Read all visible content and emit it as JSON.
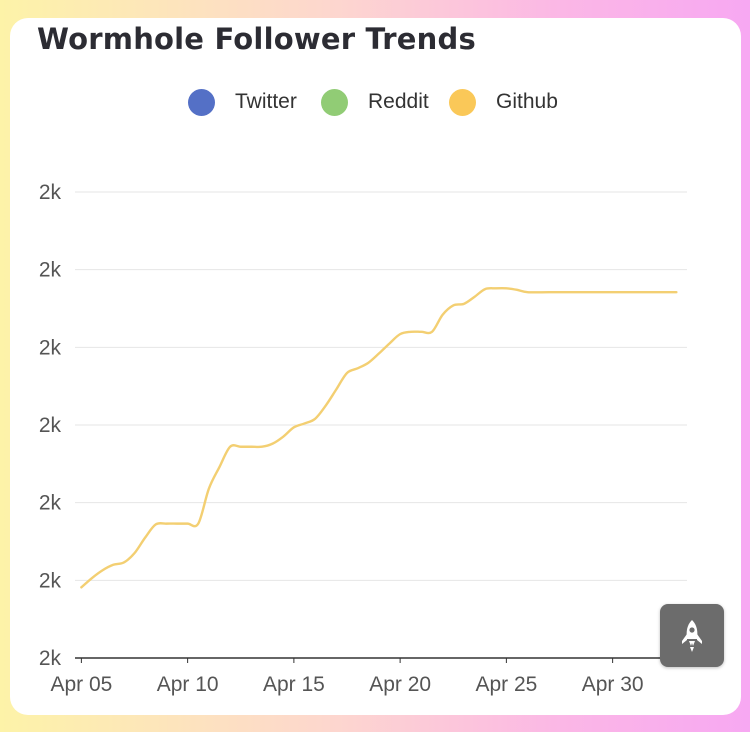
{
  "chart_data": {
    "type": "line",
    "title": "Wormhole Follower Trends",
    "xlabel": "",
    "ylabel": "",
    "legend_position": "top-center",
    "grid": true,
    "legend": [
      {
        "name": "Twitter",
        "color": "#5470c6"
      },
      {
        "name": "Reddit",
        "color": "#91cc75"
      },
      {
        "name": "Github",
        "color": "#fac858"
      }
    ],
    "x_ticks": [
      {
        "label": "Apr 05",
        "day": 0
      },
      {
        "label": "Apr 10",
        "day": 5
      },
      {
        "label": "Apr 15",
        "day": 10
      },
      {
        "label": "Apr 20",
        "day": 15
      },
      {
        "label": "Apr 25",
        "day": 20
      },
      {
        "label": "Apr 30",
        "day": 25
      }
    ],
    "y_tick_labels": [
      "2k",
      "2k",
      "2k",
      "2k",
      "2k",
      "2k",
      "2k"
    ],
    "y_tick_values": [
      1990,
      2000,
      2010,
      2020,
      2030,
      2040,
      2050
    ],
    "ylim": [
      1990,
      2050
    ],
    "xlim": [
      -0.3,
      28.5
    ],
    "series": [
      {
        "name": "Github",
        "color": "#f3cf72",
        "points": [
          [
            0,
            1999.1
          ],
          [
            0.5,
            2000.3
          ],
          [
            1,
            2001.3
          ],
          [
            1.5,
            2002
          ],
          [
            2,
            2002.3
          ],
          [
            2.5,
            2003.5
          ],
          [
            3,
            2005.5
          ],
          [
            3.5,
            2007.2
          ],
          [
            4,
            2007.3
          ],
          [
            4.5,
            2007.3
          ],
          [
            5,
            2007.3
          ],
          [
            5.5,
            2007.3
          ],
          [
            6,
            2011.8
          ],
          [
            6.5,
            2014.6
          ],
          [
            7,
            2017.2
          ],
          [
            7.5,
            2017.2
          ],
          [
            8,
            2017.2
          ],
          [
            8.5,
            2017.2
          ],
          [
            9,
            2017.6
          ],
          [
            9.5,
            2018.5
          ],
          [
            10,
            2019.7
          ],
          [
            10.5,
            2020.2
          ],
          [
            11,
            2020.8
          ],
          [
            11.5,
            2022.5
          ],
          [
            12,
            2024.6
          ],
          [
            12.5,
            2026.7
          ],
          [
            13,
            2027.3
          ],
          [
            13.5,
            2028
          ],
          [
            14,
            2029.2
          ],
          [
            14.5,
            2030.5
          ],
          [
            15,
            2031.7
          ],
          [
            15.5,
            2032
          ],
          [
            16,
            2032
          ],
          [
            16.5,
            2032
          ],
          [
            17,
            2034.2
          ],
          [
            17.5,
            2035.4
          ],
          [
            18,
            2035.6
          ],
          [
            18.5,
            2036.5
          ],
          [
            19,
            2037.5
          ],
          [
            19.5,
            2037.6
          ],
          [
            20,
            2037.6
          ],
          [
            20.5,
            2037.4
          ],
          [
            21,
            2037.1
          ],
          [
            22,
            2037.1
          ],
          [
            23,
            2037.1
          ],
          [
            24,
            2037.1
          ],
          [
            25,
            2037.1
          ],
          [
            26,
            2037.1
          ],
          [
            27,
            2037.1
          ],
          [
            28,
            2037.1
          ]
        ]
      }
    ]
  },
  "fab": {
    "icon": "rocket-icon"
  }
}
